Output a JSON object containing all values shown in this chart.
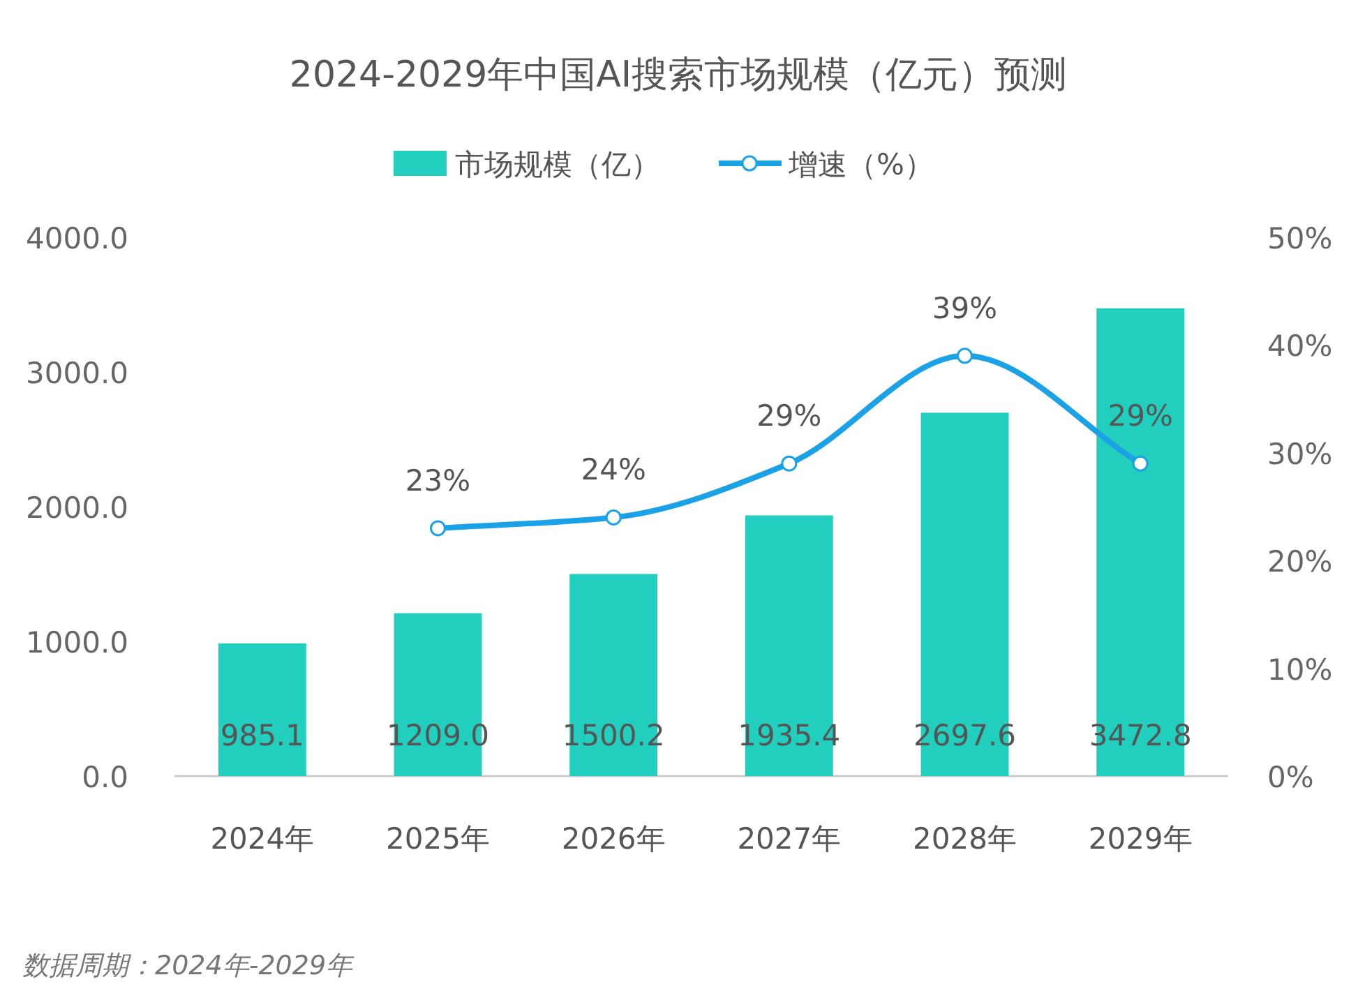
{
  "chart_data": {
    "type": "bar",
    "title": "2024-2029年中国AI搜索市场规模（亿元）预测",
    "categories": [
      "2024年",
      "2025年",
      "2026年",
      "2027年",
      "2028年",
      "2029年"
    ],
    "series": [
      {
        "name": "市场规模（亿）",
        "color": "#22cebe",
        "values": [
          985.1,
          1209.0,
          1500.2,
          1935.4,
          2697.6,
          3472.8
        ],
        "value_labels": [
          "985.1",
          "1209.0",
          "1500.2",
          "1935.4",
          "2697.6",
          "3472.8"
        ]
      },
      {
        "name": "增速（%）",
        "type": "line",
        "axis": "y2",
        "color": "#1ba1e6",
        "marker": "circle",
        "values": [
          null,
          23,
          24,
          29,
          39,
          29
        ],
        "value_labels": [
          null,
          "23%",
          "24%",
          "29%",
          "39%",
          "29%"
        ]
      }
    ],
    "ylim": [
      0,
      4000
    ],
    "yticks": [
      {
        "value": 0,
        "label": "0.0"
      },
      {
        "value": 1000,
        "label": "1000.0"
      },
      {
        "value": 2000,
        "label": "2000.0"
      },
      {
        "value": 3000,
        "label": "3000.0"
      },
      {
        "value": 4000,
        "label": "4000.0"
      }
    ],
    "y2lim": [
      0,
      50
    ],
    "y2ticks": [
      {
        "value": 0,
        "label": "0%"
      },
      {
        "value": 10,
        "label": "10%"
      },
      {
        "value": 20,
        "label": "20%"
      },
      {
        "value": 30,
        "label": "30%"
      },
      {
        "value": 40,
        "label": "40%"
      },
      {
        "value": 50,
        "label": "50%"
      }
    ],
    "legend": "top",
    "grid": false,
    "annotations": [
      "数据周期：2024年-2029年"
    ]
  }
}
